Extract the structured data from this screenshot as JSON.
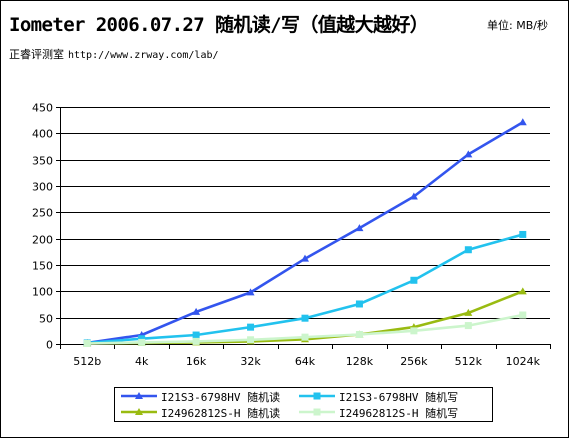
{
  "header": {
    "title": "Iometer 2006.07.27 随机读/写（值越大越好）",
    "unit_label": "单位: MB/秒",
    "source_label": "正睿评测室",
    "source_url": "http://www.zrway.com/lab/"
  },
  "chart_data": {
    "type": "line",
    "title": "Iometer 2006.07.27 随机读/写（值越大越好）",
    "xlabel": "",
    "ylabel": "",
    "categories": [
      "512b",
      "4k",
      "16k",
      "32k",
      "64k",
      "128k",
      "256k",
      "512k",
      "1024k"
    ],
    "ylim": [
      0,
      450
    ],
    "yticks": [
      0,
      50,
      100,
      150,
      200,
      250,
      300,
      350,
      400,
      450
    ],
    "grid": true,
    "legend_position": "bottom",
    "series": [
      {
        "name": "I21S3-6798HV 随机读",
        "color": "#3355ee",
        "marker": "triangle",
        "values": [
          2,
          17,
          61,
          98,
          162,
          220,
          280,
          360,
          421
        ]
      },
      {
        "name": "I21S3-6798HV 随机写",
        "color": "#22c2ee",
        "marker": "square",
        "values": [
          2,
          10,
          17,
          32,
          49,
          76,
          121,
          179,
          208
        ]
      },
      {
        "name": "I24962812S-H 随机读",
        "color": "#99bb11",
        "marker": "triangle",
        "values": [
          1,
          2,
          3,
          5,
          9,
          18,
          32,
          59,
          100
        ]
      },
      {
        "name": "I24962812S-H 随机写",
        "color": "#ccf5cc",
        "marker": "square",
        "values": [
          1,
          3,
          5,
          8,
          13,
          18,
          25,
          35,
          55
        ]
      }
    ]
  }
}
